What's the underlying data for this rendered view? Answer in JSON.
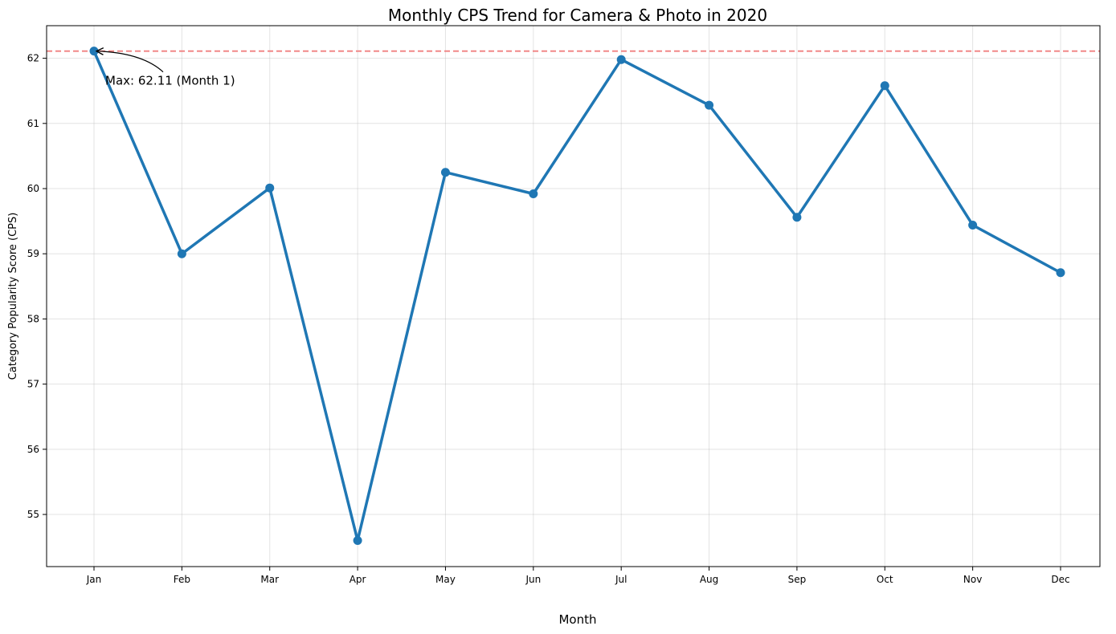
{
  "chart_data": {
    "type": "line",
    "title": "Monthly CPS Trend for Camera & Photo in 2020",
    "xlabel": "Month",
    "ylabel": "Category Popularity Score (CPS)",
    "categories": [
      "Jan",
      "Feb",
      "Mar",
      "Apr",
      "May",
      "Jun",
      "Jul",
      "Aug",
      "Sep",
      "Oct",
      "Nov",
      "Dec"
    ],
    "series": [
      {
        "values": [
          62.11,
          59.0,
          60.01,
          54.6,
          60.25,
          59.92,
          61.98,
          61.28,
          59.56,
          61.58,
          59.44,
          58.71
        ],
        "color": "#1f77b4"
      }
    ],
    "ylim": [
      54.2,
      62.5
    ],
    "yticks": [
      55,
      56,
      57,
      58,
      59,
      60,
      61,
      62
    ],
    "grid": true,
    "reference_line": {
      "value": 62.11,
      "color": "#f08080",
      "style": "dashed"
    },
    "annotation": {
      "text": "Max: 62.11 (Month 1)",
      "target_index": 0,
      "target_value": 62.11
    }
  }
}
